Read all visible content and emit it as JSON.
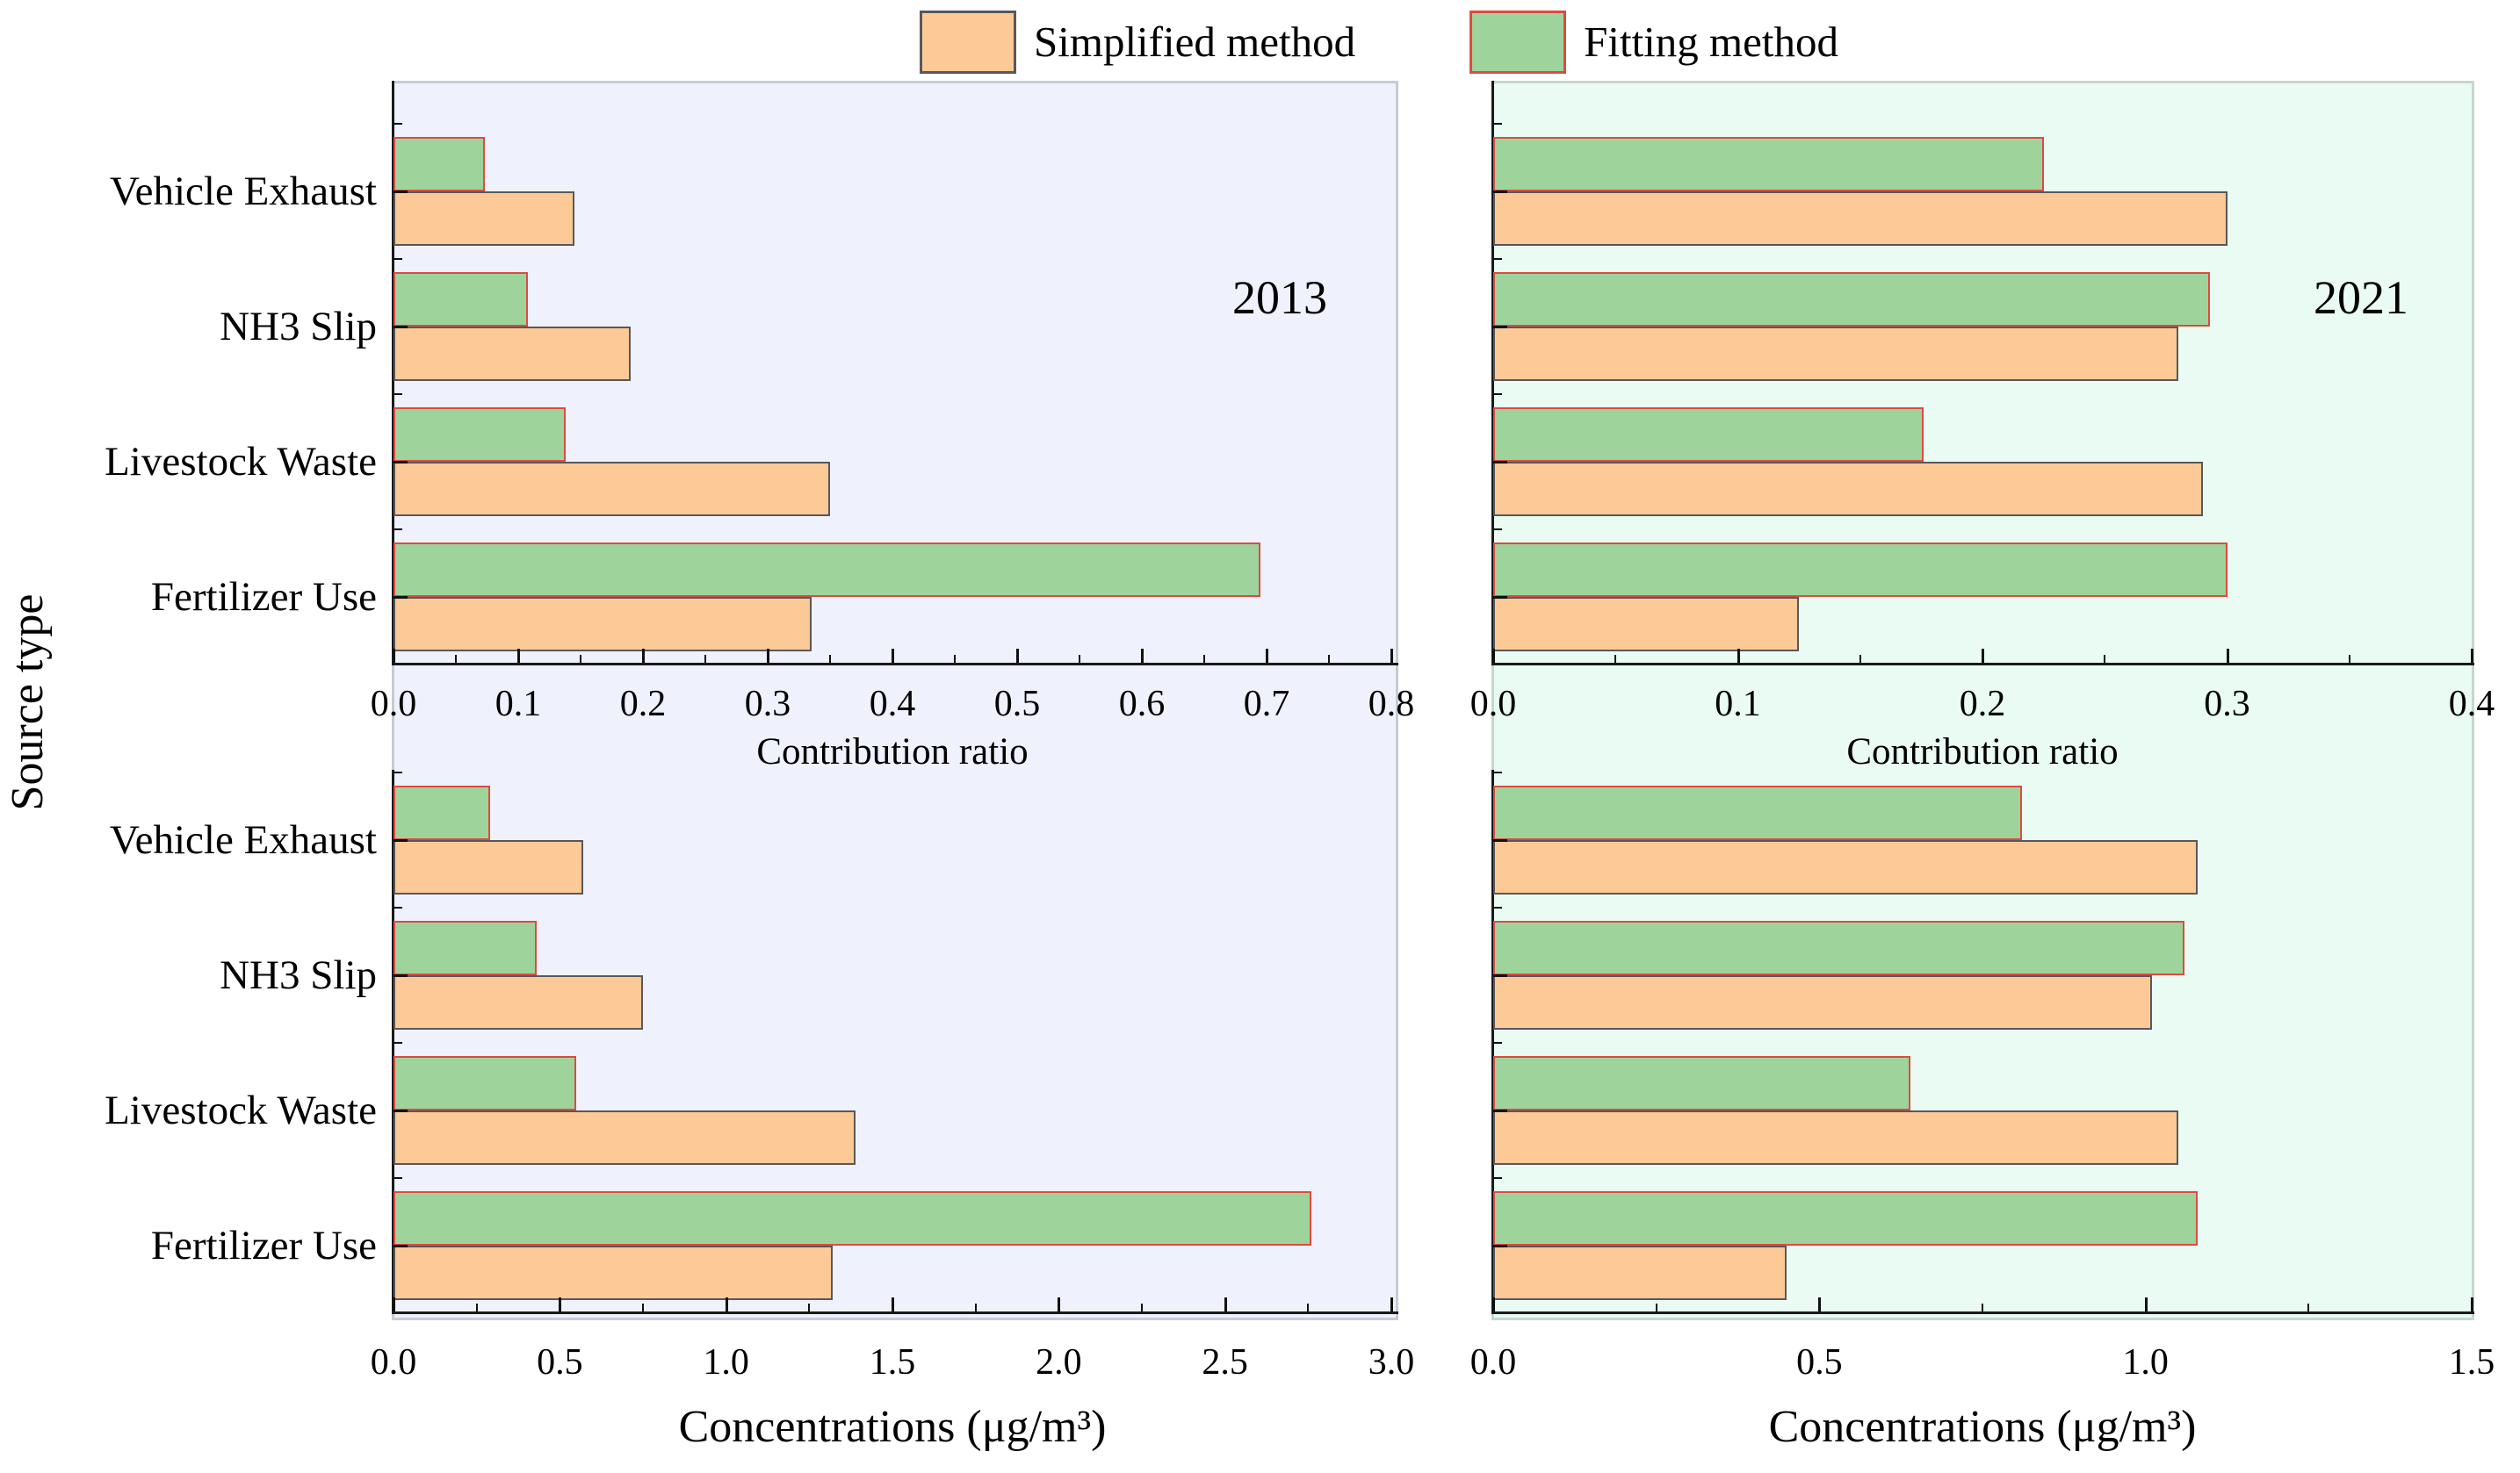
{
  "figure": {
    "ylabel": "Source type",
    "background": "#ffffff",
    "panel_border": "#c7cbd6"
  },
  "legend": {
    "items": [
      {
        "label": "Simplified method",
        "color": "#fcc997",
        "border": "#58585a"
      },
      {
        "label": "Fitting method",
        "color": "#9ed49c",
        "border": "#dd4b40"
      }
    ]
  },
  "chart_data": [
    {
      "type": "bar",
      "orientation": "horizontal",
      "year_label": "2013",
      "xlabel": "Contribution ratio",
      "panel_bg": "#eff1fc",
      "categories": [
        "Vehicle Exhaust",
        "NH3 Slip",
        "Livestock Waste",
        "Fertilizer Use"
      ],
      "series": [
        {
          "name": "Simplified method",
          "color": "#fcc997",
          "border": "#58585a",
          "values": [
            0.145,
            0.19,
            0.35,
            0.335
          ]
        },
        {
          "name": "Fitting method",
          "color": "#9ed49c",
          "border": "#dd4b40",
          "values": [
            0.073,
            0.108,
            0.138,
            0.695
          ]
        }
      ],
      "xlim": [
        0,
        0.8
      ],
      "xticks": [
        "0.0",
        "0.1",
        "0.2",
        "0.3",
        "0.4",
        "0.5",
        "0.6",
        "0.7",
        "0.8"
      ],
      "grid": false,
      "legend_position": "top-center"
    },
    {
      "type": "bar",
      "orientation": "horizontal",
      "year_label": "2021",
      "xlabel": "Contribution ratio",
      "panel_bg": "#e9fbf3",
      "categories": [
        "Vehicle Exhaust",
        "NH3 Slip",
        "Livestock Waste",
        "Fertilizer Use"
      ],
      "series": [
        {
          "name": "Simplified method",
          "color": "#fcc997",
          "border": "#58585a",
          "values": [
            0.3,
            0.28,
            0.29,
            0.125
          ]
        },
        {
          "name": "Fitting method",
          "color": "#9ed49c",
          "border": "#dd4b40",
          "values": [
            0.225,
            0.293,
            0.176,
            0.3
          ]
        }
      ],
      "xlim": [
        0,
        0.4
      ],
      "xticks": [
        "0.0",
        "0.1",
        "0.2",
        "0.3",
        "0.4"
      ],
      "grid": false,
      "legend_position": "top-center"
    },
    {
      "type": "bar",
      "orientation": "horizontal",
      "year_label": "",
      "xlabel": "Concentrations (μg/m³)",
      "panel_bg": "#eff1fc",
      "categories": [
        "Vehicle Exhaust",
        "NH3 Slip",
        "Livestock Waste",
        "Fertilizer Use"
      ],
      "series": [
        {
          "name": "Simplified method",
          "color": "#fcc997",
          "border": "#58585a",
          "values": [
            0.57,
            0.75,
            1.39,
            1.32
          ]
        },
        {
          "name": "Fitting method",
          "color": "#9ed49c",
          "border": "#dd4b40",
          "values": [
            0.29,
            0.43,
            0.55,
            2.76
          ]
        }
      ],
      "xlim": [
        0,
        3.0
      ],
      "xticks": [
        "0.0",
        "0.5",
        "1.0",
        "1.5",
        "2.0",
        "2.5",
        "3.0"
      ],
      "grid": false,
      "legend_position": "top-center"
    },
    {
      "type": "bar",
      "orientation": "horizontal",
      "year_label": "",
      "xlabel": "Concentrations (μg/m³)",
      "panel_bg": "#e9fbf3",
      "categories": [
        "Vehicle Exhaust",
        "NH3 Slip",
        "Livestock Waste",
        "Fertilizer Use"
      ],
      "series": [
        {
          "name": "Simplified method",
          "color": "#fcc997",
          "border": "#58585a",
          "values": [
            1.08,
            1.01,
            1.05,
            0.45
          ]
        },
        {
          "name": "Fitting method",
          "color": "#9ed49c",
          "border": "#dd4b40",
          "values": [
            0.81,
            1.06,
            0.64,
            1.08
          ]
        }
      ],
      "xlim": [
        0,
        1.5
      ],
      "xticks": [
        "0.0",
        "0.5",
        "1.0",
        "1.5"
      ],
      "grid": false,
      "legend_position": "top-center"
    }
  ]
}
